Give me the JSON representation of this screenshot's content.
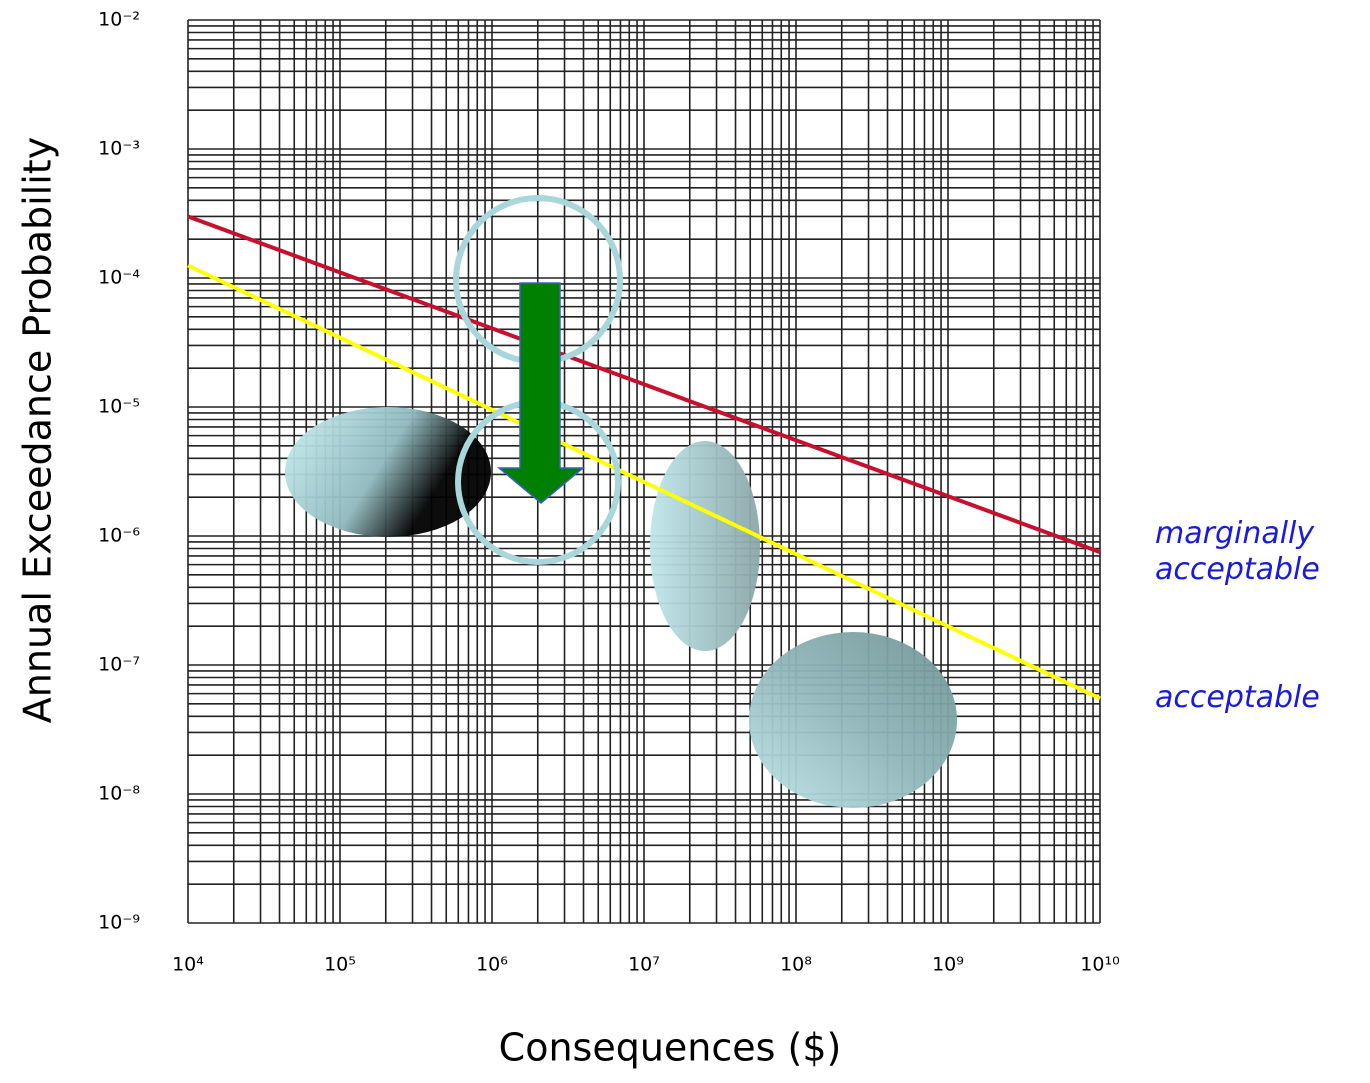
{
  "chart_data": {
    "type": "line",
    "xlabel": "Consequences ($)",
    "ylabel": "Annual Exceedance Probability",
    "xscale": "log",
    "yscale": "log",
    "grid": true,
    "minor_grid": true,
    "xlim": [
      10000,
      10000000000
    ],
    "ylim": [
      1e-09,
      0.01
    ],
    "xticks": [
      {
        "value": 10000,
        "label": "10⁴"
      },
      {
        "value": 100000,
        "label": "10⁵"
      },
      {
        "value": 1000000,
        "label": "10⁶"
      },
      {
        "value": 10000000,
        "label": "10⁷"
      },
      {
        "value": 100000000,
        "label": "10⁸"
      },
      {
        "value": 1000000000,
        "label": "10⁹"
      },
      {
        "value": 10000000000,
        "label": "10¹⁰"
      }
    ],
    "yticks": [
      {
        "value": 1e-09,
        "label": "10⁻⁹"
      },
      {
        "value": 1e-08,
        "label": "10⁻⁸"
      },
      {
        "value": 1e-07,
        "label": "10⁻⁷"
      },
      {
        "value": 1e-06,
        "label": "10⁻⁶"
      },
      {
        "value": 1e-05,
        "label": "10⁻⁵"
      },
      {
        "value": 0.0001,
        "label": "10⁻⁴"
      },
      {
        "value": 0.001,
        "label": "10⁻³"
      },
      {
        "value": 0.01,
        "label": "10⁻²"
      }
    ],
    "x": [
      10000,
      10000000000
    ],
    "series": [
      {
        "name": "marginally acceptable",
        "color": "#c8102e",
        "values": [
          0.0003,
          7.5e-07
        ]
      },
      {
        "name": "acceptable",
        "color": "#ffff00",
        "values": [
          0.000125,
          5.5e-08
        ]
      }
    ]
  }
}
